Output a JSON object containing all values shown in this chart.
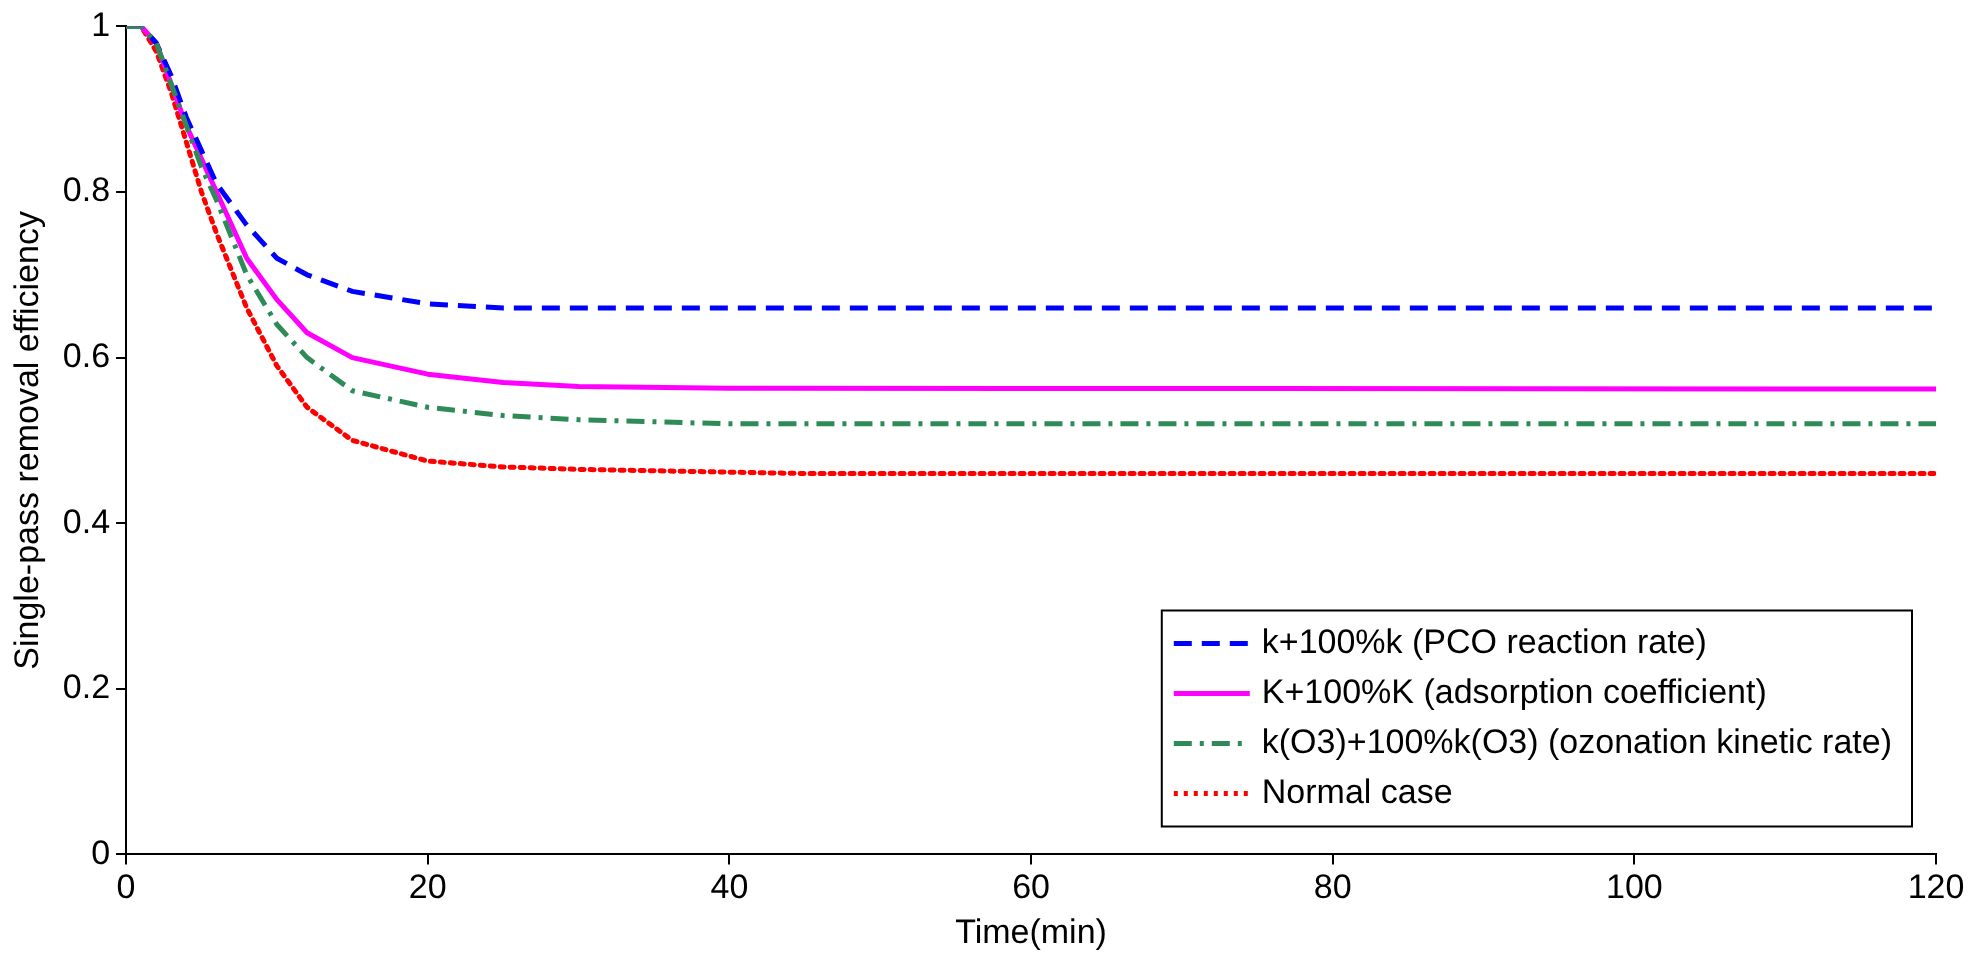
{
  "chart_data": {
    "type": "line",
    "xlabel": "Time(min)",
    "ylabel": "Single-pass removal efficiency",
    "xlim": [
      0,
      120
    ],
    "xticks": [
      0,
      20,
      40,
      60,
      80,
      100,
      120
    ],
    "ylim": [
      0,
      1
    ],
    "yticks": [
      0,
      0.2,
      0.4,
      0.6,
      0.8,
      1
    ],
    "legend": "bottom right",
    "marker": "none",
    "series": [
      {
        "name": "k+100%k (PCO reaction rate)",
        "color": "#0000ff",
        "line_style": "dashed",
        "x": [
          0,
          1,
          2,
          3,
          4,
          5,
          6,
          8,
          10,
          12,
          15,
          20,
          25,
          120
        ],
        "values": [
          1,
          1,
          0.98,
          0.94,
          0.89,
          0.85,
          0.81,
          0.76,
          0.72,
          0.7,
          0.68,
          0.665,
          0.66,
          0.66
        ]
      },
      {
        "name": "K+100%K (adsorption coefficient)",
        "color": "#ff00ff",
        "line_style": "solid",
        "x": [
          0,
          1,
          2,
          3,
          4,
          5,
          6,
          8,
          10,
          12,
          15,
          20,
          25,
          30,
          40,
          120
        ],
        "values": [
          1,
          1,
          0.98,
          0.93,
          0.88,
          0.84,
          0.8,
          0.72,
          0.67,
          0.63,
          0.6,
          0.58,
          0.57,
          0.565,
          0.563,
          0.562
        ]
      },
      {
        "name": "k(O3)+100%k(O3) (ozonation kinetic rate)",
        "color": "#2e8b57",
        "line_style": "dashdot",
        "x": [
          0,
          1,
          2,
          3,
          4,
          5,
          6,
          8,
          10,
          12,
          15,
          20,
          25,
          30,
          40,
          120
        ],
        "values": [
          1,
          1,
          0.98,
          0.93,
          0.88,
          0.83,
          0.79,
          0.7,
          0.64,
          0.6,
          0.56,
          0.54,
          0.53,
          0.525,
          0.52,
          0.52
        ]
      },
      {
        "name": "Normal case",
        "color": "#ff0000",
        "line_style": "dotted",
        "x": [
          0,
          1,
          2,
          3,
          4,
          5,
          6,
          8,
          10,
          12,
          15,
          20,
          25,
          30,
          45,
          120
        ],
        "values": [
          1,
          1,
          0.97,
          0.92,
          0.86,
          0.8,
          0.75,
          0.66,
          0.59,
          0.54,
          0.5,
          0.475,
          0.468,
          0.465,
          0.46,
          0.46
        ]
      }
    ]
  }
}
